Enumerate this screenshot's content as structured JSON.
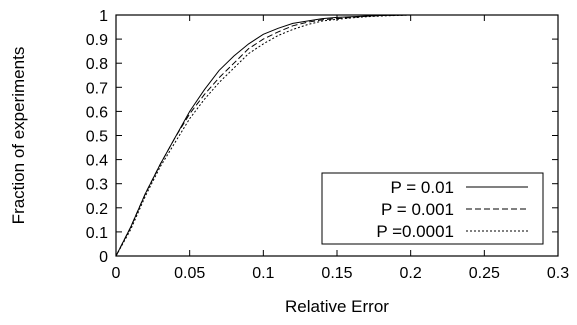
{
  "chart_data": {
    "type": "line",
    "title": "",
    "xlabel": "Relative Error",
    "ylabel": "Fraction of experiments",
    "xlim": [
      0,
      0.3
    ],
    "ylim": [
      0,
      1
    ],
    "x_ticks": [
      "0",
      "0.05",
      "0.1",
      "0.15",
      "0.2",
      "0.25",
      "0.3"
    ],
    "y_ticks": [
      "0",
      "0.1",
      "0.2",
      "0.3",
      "0.4",
      "0.5",
      "0.6",
      "0.7",
      "0.8",
      "0.9",
      "1"
    ],
    "grid": false,
    "legend": "bottom-right",
    "series": [
      {
        "name": "P = 0.01",
        "style": "solid",
        "x": [
          0,
          0.01,
          0.02,
          0.03,
          0.04,
          0.05,
          0.06,
          0.07,
          0.08,
          0.09,
          0.1,
          0.11,
          0.12,
          0.13,
          0.14,
          0.15,
          0.16,
          0.17,
          0.18,
          0.19,
          0.2,
          0.25,
          0.3
        ],
        "y": [
          0,
          0.12,
          0.26,
          0.38,
          0.49,
          0.6,
          0.69,
          0.77,
          0.83,
          0.88,
          0.92,
          0.945,
          0.965,
          0.975,
          0.985,
          0.99,
          0.993,
          0.996,
          0.998,
          0.999,
          1,
          1,
          1
        ]
      },
      {
        "name": "P = 0.001",
        "style": "dashed",
        "x": [
          0,
          0.01,
          0.02,
          0.03,
          0.04,
          0.05,
          0.06,
          0.07,
          0.08,
          0.09,
          0.1,
          0.11,
          0.12,
          0.13,
          0.14,
          0.15,
          0.16,
          0.17,
          0.18,
          0.19,
          0.2,
          0.25,
          0.3
        ],
        "y": [
          0,
          0.12,
          0.26,
          0.38,
          0.49,
          0.59,
          0.67,
          0.74,
          0.8,
          0.86,
          0.9,
          0.93,
          0.955,
          0.97,
          0.98,
          0.985,
          0.99,
          0.995,
          0.998,
          0.999,
          1,
          1,
          1
        ]
      },
      {
        "name": "P =0.0001",
        "style": "dotted",
        "x": [
          0,
          0.01,
          0.02,
          0.03,
          0.04,
          0.05,
          0.06,
          0.07,
          0.08,
          0.09,
          0.1,
          0.11,
          0.12,
          0.13,
          0.14,
          0.15,
          0.16,
          0.17,
          0.18,
          0.19,
          0.2,
          0.25,
          0.3
        ],
        "y": [
          0,
          0.11,
          0.25,
          0.37,
          0.47,
          0.57,
          0.65,
          0.72,
          0.78,
          0.84,
          0.88,
          0.915,
          0.94,
          0.96,
          0.975,
          0.982,
          0.988,
          0.993,
          0.996,
          0.998,
          1,
          1,
          1
        ]
      }
    ]
  }
}
